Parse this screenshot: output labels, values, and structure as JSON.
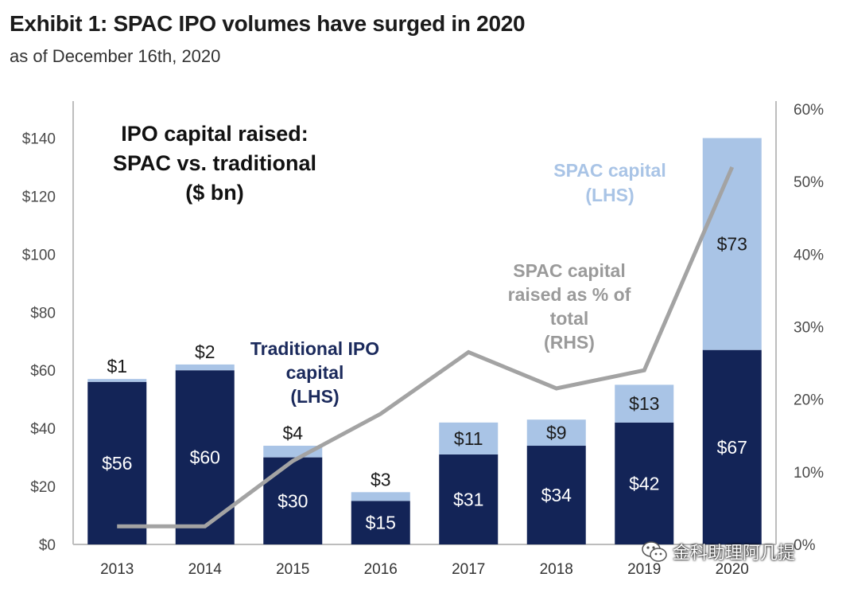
{
  "title": "Exhibit 1: SPAC IPO volumes have surged in 2020",
  "subtitle": "as of December 16th, 2020",
  "watermark": {
    "text": "金科助理阿几提",
    "icon": "wechat-icon"
  },
  "colors": {
    "traditional": "#132457",
    "spac": "#a9c4e6",
    "line": "#a3a3a3",
    "spac_label": "#a9c4e6",
    "line_label": "#9a9a9a",
    "traditional_label": "#1b2a5c"
  },
  "chart_data": {
    "type": "bar",
    "stacked": true,
    "categories": [
      "2013",
      "2014",
      "2015",
      "2016",
      "2017",
      "2018",
      "2019",
      "2020"
    ],
    "series": [
      {
        "name": "Traditional IPO capital (LHS)",
        "axis": "left",
        "values": [
          56,
          60,
          30,
          15,
          31,
          34,
          42,
          67
        ]
      },
      {
        "name": "SPAC capital (LHS)",
        "axis": "left",
        "values": [
          1,
          2,
          4,
          3,
          11,
          9,
          13,
          73
        ]
      },
      {
        "name": "SPAC capital raised as % of total (RHS)",
        "axis": "right",
        "type": "line",
        "values": [
          2.5,
          2.5,
          11.5,
          18,
          26.5,
          21.5,
          24,
          52
        ]
      }
    ],
    "bar_labels": {
      "traditional": [
        "$56",
        "$60",
        "$30",
        "$15",
        "$31",
        "$34",
        "$42",
        "$67"
      ],
      "spac": [
        "$1",
        "$2",
        "$4",
        "$3",
        "$11",
        "$9",
        "$13",
        "$73"
      ]
    },
    "left_axis": {
      "ticks": [
        "$0",
        "$20",
        "$40",
        "$60",
        "$80",
        "$100",
        "$120",
        "$140"
      ],
      "ylim": [
        0,
        150
      ]
    },
    "right_axis": {
      "ticks": [
        "0%",
        "10%",
        "20%",
        "30%",
        "40%",
        "50%",
        "60%"
      ],
      "ylim": [
        0,
        60
      ]
    },
    "annotations": {
      "chart_title": [
        "IPO capital raised:",
        "SPAC vs. traditional",
        "($ bn)"
      ],
      "spac_capital": [
        "SPAC capital",
        "(LHS)"
      ],
      "spac_pct": [
        "SPAC capital",
        "raised as % of",
        "total",
        "(RHS)"
      ],
      "traditional": [
        "Traditional IPO",
        "capital",
        "(LHS)"
      ]
    },
    "grid": false,
    "legend": "none"
  }
}
